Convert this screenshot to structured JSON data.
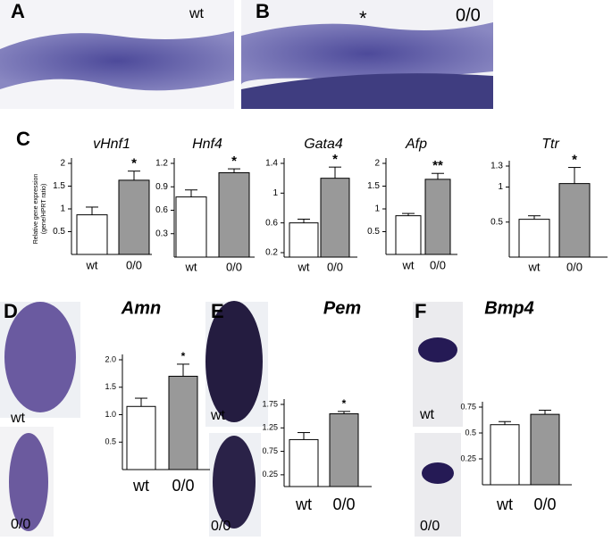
{
  "panels": {
    "A": {
      "letter": "A",
      "label": "wt"
    },
    "B": {
      "letter": "B",
      "label": "0/0",
      "mark": "*"
    },
    "C": {
      "letter": "C"
    },
    "D": {
      "letter": "D",
      "labels": [
        "wt",
        "0/0"
      ]
    },
    "E": {
      "letter": "E",
      "labels": [
        "wt",
        "0/0"
      ]
    },
    "F": {
      "letter": "F",
      "labels": [
        "wt",
        "0/0"
      ]
    }
  },
  "chart_data": [
    {
      "type": "bar",
      "title": "vHnf1",
      "ylabel": [
        "Relative gene expression",
        "(gene/HPRT ratio)"
      ],
      "categories": [
        "wt",
        "0/0"
      ],
      "values": [
        0.87,
        1.63
      ],
      "errors": [
        0.17,
        0.2
      ],
      "sig": [
        null,
        "*"
      ],
      "colors": [
        "#ffffff",
        "#999999"
      ],
      "ylim": [
        0,
        2
      ],
      "yticks": [
        0.5,
        1,
        1.5,
        2
      ]
    },
    {
      "type": "bar",
      "title": "Hnf4",
      "categories": [
        "wt",
        "0/0"
      ],
      "values": [
        0.77,
        1.08
      ],
      "errors": [
        0.09,
        0.05
      ],
      "sig": [
        null,
        "*"
      ],
      "colors": [
        "#ffffff",
        "#999999"
      ],
      "ylim": [
        0,
        1.2
      ],
      "yticks": [
        0.3,
        0.6,
        0.9,
        1.2
      ]
    },
    {
      "type": "bar",
      "title": "Gata4",
      "categories": [
        "wt",
        "0/0"
      ],
      "values": [
        0.6,
        1.2
      ],
      "errors": [
        0.05,
        0.15
      ],
      "sig": [
        null,
        "*"
      ],
      "colors": [
        "#ffffff",
        "#999999"
      ],
      "ylim": [
        0.14,
        1.4
      ],
      "yticks": [
        0.2,
        0.6,
        1,
        1.4
      ]
    },
    {
      "type": "bar",
      "title": "Afp",
      "categories": [
        "wt",
        "0/0"
      ],
      "values": [
        0.85,
        1.65
      ],
      "errors": [
        0.05,
        0.13
      ],
      "sig": [
        null,
        "**"
      ],
      "colors": [
        "#ffffff",
        "#999999"
      ],
      "ylim": [
        0,
        2
      ],
      "yticks": [
        0.5,
        1,
        1.5,
        2
      ]
    },
    {
      "type": "bar",
      "title": "Ttr",
      "categories": [
        "wt",
        "0/0"
      ],
      "values": [
        0.54,
        1.05
      ],
      "errors": [
        0.05,
        0.23
      ],
      "sig": [
        null,
        "*"
      ],
      "colors": [
        "#ffffff",
        "#999999"
      ],
      "ylim": [
        0,
        1.3
      ],
      "yticks": [
        0.5,
        1,
        1.3
      ]
    },
    {
      "type": "bar",
      "title": "Amn",
      "categories": [
        "wt",
        "0/0"
      ],
      "values": [
        1.15,
        1.7
      ],
      "errors": [
        0.15,
        0.22
      ],
      "sig": [
        null,
        "*"
      ],
      "colors": [
        "#ffffff",
        "#999999"
      ],
      "ylim": [
        0,
        2
      ],
      "yticks": [
        {
          "value": 0.5,
          "label": "0.5"
        },
        {
          "value": 1,
          "label": "1.0"
        },
        {
          "value": 1.5,
          "label": "1.5"
        },
        {
          "value": 2,
          "label": "2.0"
        }
      ]
    },
    {
      "type": "bar",
      "title": "Pem",
      "categories": [
        "wt",
        "0/0"
      ],
      "values": [
        1.0,
        1.55
      ],
      "errors": [
        0.15,
        0.05
      ],
      "sig": [
        null,
        "*"
      ],
      "colors": [
        "#ffffff",
        "#999999"
      ],
      "ylim": [
        0,
        1.75
      ],
      "yticks": [
        0.25,
        0.75,
        1.25,
        1.75
      ]
    },
    {
      "type": "bar",
      "title": "Bmp4",
      "categories": [
        "wt",
        "0/0"
      ],
      "values": [
        0.58,
        0.68
      ],
      "errors": [
        0.03,
        0.04
      ],
      "sig": [
        null,
        null
      ],
      "colors": [
        "#ffffff",
        "#999999"
      ],
      "ylim": [
        0,
        0.75
      ],
      "yticks": [
        0.25,
        0.5,
        0.75
      ]
    }
  ]
}
